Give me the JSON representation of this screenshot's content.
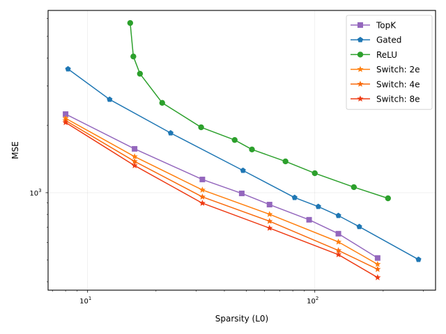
{
  "chart_data": {
    "type": "line",
    "title": "",
    "xlabel": "Sparsity (L0)",
    "ylabel": "MSE",
    "xscale": "log",
    "yscale": "log",
    "xlim": [
      6.7,
      340
    ],
    "ylim": [
      367,
      6520
    ],
    "x_major_ticks": [
      {
        "value": 10,
        "base": "10",
        "exp": "1"
      },
      {
        "value": 100,
        "base": "10",
        "exp": "2"
      }
    ],
    "y_major_ticks": [
      {
        "value": 1000,
        "base": "10",
        "exp": "3"
      }
    ],
    "grid": true,
    "legend_position": "top-right",
    "series": [
      {
        "name": "TopK",
        "color": "#9467bd",
        "marker": "square",
        "x": [
          8.0,
          16.1,
          32.0,
          47.7,
          63.2,
          94.4,
          127,
          189
        ],
        "y": [
          2245,
          1570,
          1146,
          993,
          885,
          757,
          656,
          511
        ]
      },
      {
        "name": "Gated",
        "color": "#1f77b4",
        "marker": "pentagon",
        "x": [
          8.2,
          12.5,
          23.2,
          48.3,
          81.5,
          103.6,
          127,
          157,
          286
        ],
        "y": [
          3570,
          2610,
          1848,
          1257,
          951,
          867,
          790,
          705,
          503
        ]
      },
      {
        "name": "ReLU",
        "color": "#2ca02c",
        "marker": "circle",
        "x": [
          15.4,
          15.9,
          17.0,
          21.3,
          31.6,
          44.4,
          52.9,
          74.3,
          100,
          148.6,
          210
        ],
        "y": [
          5730,
          4060,
          3400,
          2520,
          1960,
          1720,
          1560,
          1380,
          1222,
          1059,
          944
        ]
      },
      {
        "name": "Switch: 2e",
        "color": "#ff7f0e",
        "marker": "star",
        "x": [
          8.0,
          16.1,
          32.0,
          63.2,
          127,
          189
        ],
        "y": [
          2150,
          1450,
          1029,
          801,
          603,
          479
        ]
      },
      {
        "name": "Switch: 4e",
        "color": "#f96a0b",
        "marker": "star",
        "x": [
          8.0,
          16.1,
          32.0,
          63.2,
          127,
          189
        ],
        "y": [
          2100,
          1380,
          958,
          746,
          552,
          455
        ]
      },
      {
        "name": "Switch: 8e",
        "color": "#ee3a12",
        "marker": "star",
        "x": [
          8.0,
          16.1,
          32.0,
          63.2,
          127,
          189
        ],
        "y": [
          2060,
          1322,
          898,
          695,
          529,
          418
        ]
      }
    ]
  }
}
